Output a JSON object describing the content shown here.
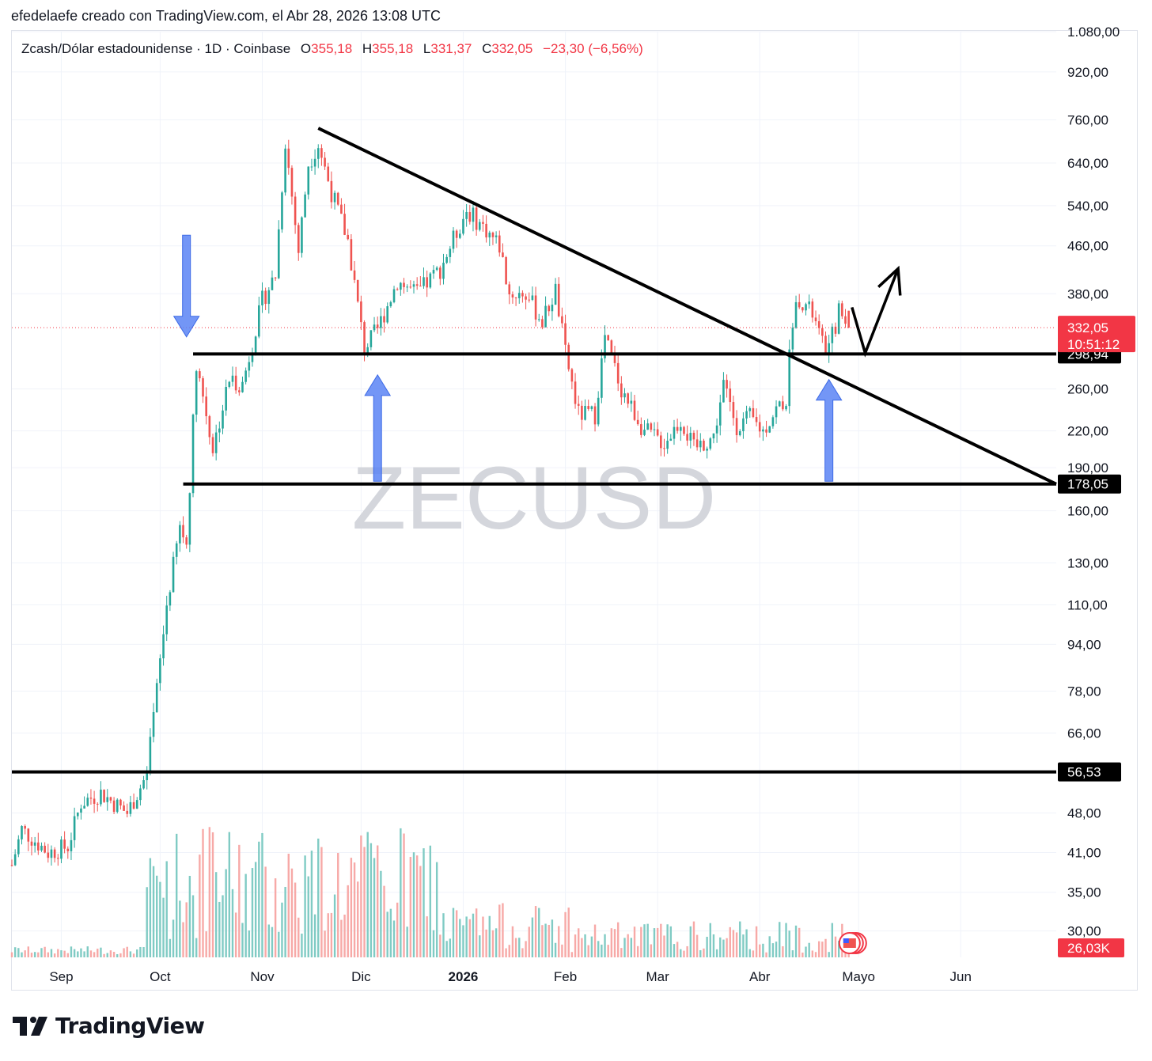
{
  "header": {
    "caption": "efedelaefe creado con TradingView.com, el Abr 28, 2026 13:08 UTC"
  },
  "symbol_bar": {
    "title": "Zcash/Dólar estadounidense · 1D · Coinbase",
    "open_label": "O",
    "open_value": "355,18",
    "high_label": "H",
    "high_value": "355,18",
    "low_label": "L",
    "low_value": "331,37",
    "close_label": "C",
    "close_value": "332,05",
    "change": "−23,30 (−6,56%)"
  },
  "watermark": "ZECUSD",
  "brand": {
    "name": "TradingView"
  },
  "colors": {
    "up": "#26a69a",
    "down": "#ef5350",
    "volume_up": "#80cbc4",
    "volume_down": "#f7a9a7",
    "annotation_line": "#000000",
    "annotation_arrow": "#5b84f5",
    "last_price": "#f23645"
  },
  "chart_data": {
    "type": "candlestick",
    "scale": "log",
    "ylim": [
      27,
      1080
    ],
    "y_ticks": [
      "1.080,00",
      "920,00",
      "760,00",
      "640,00",
      "540,00",
      "460,00",
      "380,00",
      "260,00",
      "220,00",
      "190,00",
      "160,00",
      "130,00",
      "110,00",
      "94,00",
      "78,00",
      "66,00",
      "48,00",
      "41,00",
      "35,00",
      "30,00"
    ],
    "y_tick_values": [
      1080,
      920,
      760,
      640,
      540,
      460,
      380,
      260,
      220,
      190,
      160,
      130,
      110,
      94,
      78,
      66,
      48,
      41,
      35,
      30
    ],
    "x_labels": [
      "Sep",
      "Oct",
      "Nov",
      "Dic",
      "2026",
      "Feb",
      "Mar",
      "Abr",
      "Mayo",
      "Jun"
    ],
    "x_label_dates": [
      "2025-09-01",
      "2025-10-01",
      "2025-11-01",
      "2025-12-01",
      "2026-01-01",
      "2026-02-01",
      "2026-03-01",
      "2026-04-01",
      "2026-05-01",
      "2026-06-01"
    ],
    "x_range": [
      "2025-08-17",
      "2026-06-30"
    ],
    "price_path": [
      [
        "2025-08-17",
        39
      ],
      [
        "2025-08-20",
        45
      ],
      [
        "2025-08-28",
        41
      ],
      [
        "2025-09-03",
        42
      ],
      [
        "2025-09-07",
        50
      ],
      [
        "2025-09-13",
        52
      ],
      [
        "2025-09-21",
        48
      ],
      [
        "2025-09-27",
        56
      ],
      [
        "2025-10-03",
        110
      ],
      [
        "2025-10-07",
        150
      ],
      [
        "2025-10-09",
        140
      ],
      [
        "2025-10-12",
        290
      ],
      [
        "2025-10-17",
        205
      ],
      [
        "2025-10-22",
        270
      ],
      [
        "2025-10-26",
        265
      ],
      [
        "2025-11-01",
        370
      ],
      [
        "2025-11-05",
        410
      ],
      [
        "2025-11-08",
        700
      ],
      [
        "2025-11-12",
        450
      ],
      [
        "2025-11-15",
        640
      ],
      [
        "2025-11-18",
        690
      ],
      [
        "2025-11-22",
        570
      ],
      [
        "2025-11-27",
        470
      ],
      [
        "2025-12-02",
        305
      ],
      [
        "2025-12-06",
        330
      ],
      [
        "2025-12-12",
        400
      ],
      [
        "2025-12-18",
        380
      ],
      [
        "2025-12-25",
        420
      ],
      [
        "2026-01-02",
        530
      ],
      [
        "2026-01-08",
        490
      ],
      [
        "2026-01-12",
        460
      ],
      [
        "2026-01-15",
        380
      ],
      [
        "2026-01-20",
        380
      ],
      [
        "2026-01-25",
        340
      ],
      [
        "2026-01-29",
        385
      ],
      [
        "2026-02-01",
        300
      ],
      [
        "2026-02-05",
        235
      ],
      [
        "2026-02-10",
        235
      ],
      [
        "2026-02-13",
        320
      ],
      [
        "2026-02-18",
        260
      ],
      [
        "2026-02-25",
        220
      ],
      [
        "2026-03-03",
        210
      ],
      [
        "2026-03-08",
        230
      ],
      [
        "2026-03-12",
        205
      ],
      [
        "2026-03-18",
        215
      ],
      [
        "2026-03-21",
        265
      ],
      [
        "2026-03-25",
        225
      ],
      [
        "2026-03-29",
        232
      ],
      [
        "2026-04-02",
        220
      ],
      [
        "2026-04-06",
        240
      ],
      [
        "2026-04-09",
        250
      ],
      [
        "2026-04-11",
        345
      ],
      [
        "2026-04-13",
        375
      ],
      [
        "2026-04-17",
        350
      ],
      [
        "2026-04-20",
        310
      ],
      [
        "2026-04-22",
        305
      ],
      [
        "2026-04-25",
        355
      ],
      [
        "2026-04-28",
        332
      ]
    ],
    "latest": {
      "open": 355.18,
      "high": 355.18,
      "low": 331.37,
      "close": 332.05,
      "change": -23.3,
      "change_pct": -6.56
    },
    "last_price": {
      "label": "332,05",
      "countdown": "10:51:12",
      "value": 332.05
    },
    "volume_label": "26,03K",
    "horizontal_levels": [
      {
        "label": "298,94",
        "value": 298.94,
        "from": "2025-10-11"
      },
      {
        "label": "178,05",
        "value": 178.05,
        "from": "2025-10-08"
      },
      {
        "label": "56,53",
        "value": 56.53,
        "from": "2025-08-17"
      }
    ],
    "trendline": {
      "from": [
        "2025-11-18",
        735
      ],
      "to": [
        "2026-06-30",
        178
      ]
    },
    "projection_path": [
      [
        "2026-04-29",
        360
      ],
      [
        "2026-05-03",
        300
      ],
      [
        "2026-05-13",
        420
      ]
    ],
    "arrows": [
      {
        "direction": "down",
        "date": "2025-10-09",
        "from": 480,
        "to": 320
      },
      {
        "direction": "up",
        "date": "2025-12-06",
        "from": 180,
        "to": 275
      },
      {
        "direction": "up",
        "date": "2026-04-22",
        "from": 180,
        "to": 270
      }
    ]
  }
}
